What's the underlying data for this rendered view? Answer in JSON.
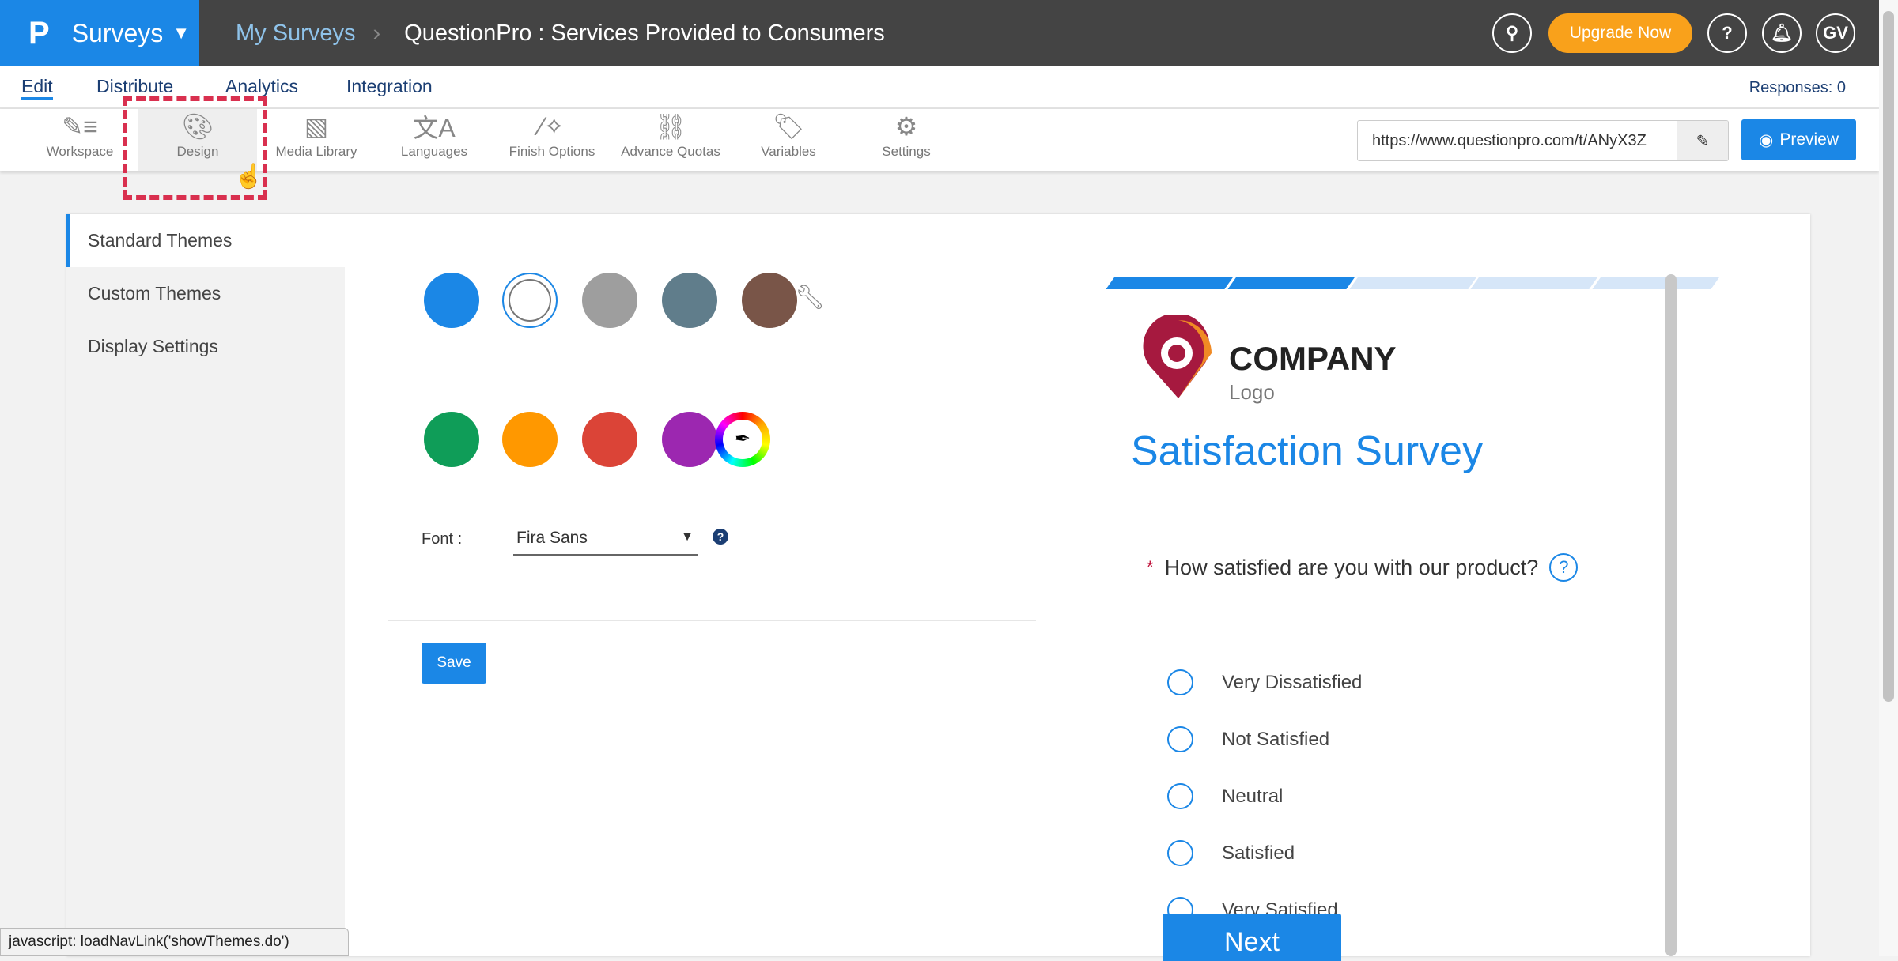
{
  "header": {
    "brand": "Surveys",
    "crumb_root": "My Surveys",
    "survey_title": "QuestionPro : Services Provided to Consumers",
    "upgrade": "Upgrade Now",
    "help": "?",
    "avatar": "GV"
  },
  "tabs": [
    {
      "label": "Edit",
      "active": true
    },
    {
      "label": "Distribute"
    },
    {
      "label": "Analytics"
    },
    {
      "label": "Integration"
    }
  ],
  "responses": "Responses: 0",
  "toolbar": {
    "items": [
      {
        "label": "Workspace",
        "icon": "workspace-icon"
      },
      {
        "label": "Design",
        "icon": "palette-icon",
        "active": true
      },
      {
        "label": "Media Library",
        "icon": "image-icon"
      },
      {
        "label": "Languages",
        "icon": "translate-icon"
      },
      {
        "label": "Finish Options",
        "icon": "magic-wand-icon"
      },
      {
        "label": "Advance Quotas",
        "icon": "link-icon"
      },
      {
        "label": "Variables",
        "icon": "tag-icon"
      },
      {
        "label": "Settings",
        "icon": "gear-icon"
      }
    ],
    "url": "https://www.questionpro.com/t/ANyX3Z",
    "preview": "Preview"
  },
  "sidebar": {
    "items": [
      {
        "label": "Standard Themes",
        "active": true
      },
      {
        "label": "Custom Themes"
      },
      {
        "label": "Display Settings"
      }
    ]
  },
  "themes": {
    "colors": [
      "#1b87e6",
      "#ffffff",
      "#9e9e9e",
      "#607d8b",
      "#795548",
      "#0f9d58",
      "#ff9800",
      "#db4437",
      "#9c27b0"
    ],
    "selected": "#ffffff"
  },
  "font": {
    "label": "Font :",
    "value": "Fira Sans"
  },
  "save": "Save",
  "survey_preview": {
    "company": "COMPANY",
    "logo_sub": "Logo",
    "title": "Satisfaction Survey",
    "question": "How satisfied are you with our product?",
    "required_mark": "*",
    "options": [
      "Very Dissatisfied",
      "Not Satisfied",
      "Neutral",
      "Satisfied",
      "Very Satisfied"
    ],
    "next": "Next",
    "progress_segments": 5,
    "progress_filled": 2
  },
  "status_bar": "javascript: loadNavLink('showThemes.do')"
}
